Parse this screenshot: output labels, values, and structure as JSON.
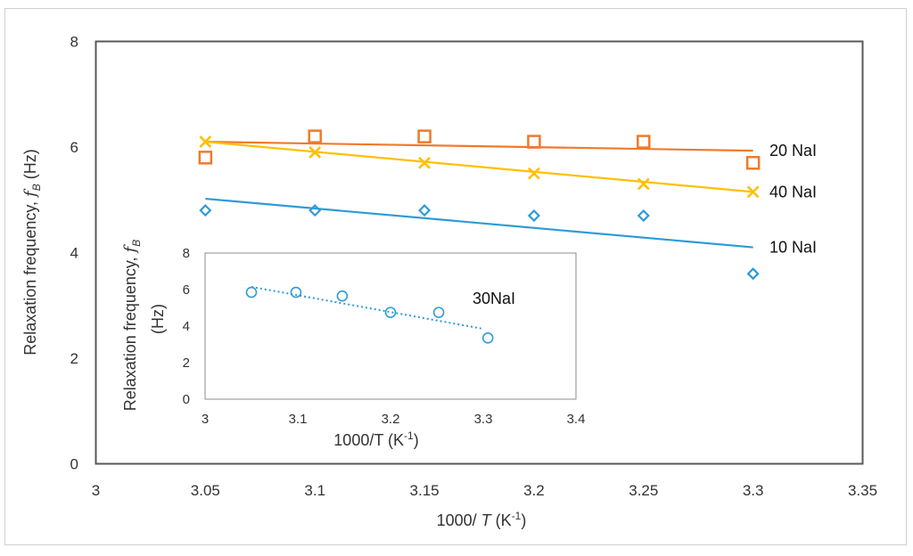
{
  "colors": {
    "frame": "#d0d0d0",
    "axis": "#595959",
    "inset_axis": "#8c8c8c",
    "series_10": "#2e9bd6",
    "series_20": "#f07a2a",
    "series_40": "#ffc000",
    "series_30": "#2e9bd6"
  },
  "chart_data": [
    {
      "type": "scatter",
      "role": "main",
      "xlabel_prefix": "1000/ ",
      "xlabel_var": "T",
      "xlabel_suffix": " (K",
      "xlabel_sup": "-1",
      "xlabel_close": ")",
      "ylabel_prefix": "Relaxation frequency, ",
      "ylabel_var": "f",
      "ylabel_sub": "B",
      "ylabel_suffix": " (Hz)",
      "xlim": [
        3.0,
        3.35
      ],
      "ylim": [
        0,
        8
      ],
      "xticks": [
        "3",
        "3.05",
        "3.1",
        "3.15",
        "3.2",
        "3.25",
        "3.3",
        "3.35"
      ],
      "yticks": [
        "0",
        "2",
        "4",
        "6",
        "8"
      ],
      "grid": false,
      "series": [
        {
          "name": "20 NaI",
          "marker": "square",
          "color": "#f07a2a",
          "x": [
            3.05,
            3.1,
            3.15,
            3.2,
            3.25,
            3.3
          ],
          "y": [
            5.8,
            6.2,
            6.2,
            6.1,
            6.1,
            5.7
          ],
          "trend": [
            [
              3.05,
              6.1
            ],
            [
              3.3,
              5.93
            ]
          ]
        },
        {
          "name": "40 NaI",
          "marker": "x",
          "color": "#ffc000",
          "x": [
            3.05,
            3.1,
            3.15,
            3.2,
            3.25,
            3.3
          ],
          "y": [
            6.1,
            5.9,
            5.7,
            5.5,
            5.3,
            5.15
          ],
          "trend": [
            [
              3.05,
              6.1
            ],
            [
              3.3,
              5.15
            ]
          ]
        },
        {
          "name": "10 NaI",
          "marker": "diamond",
          "color": "#2e9bd6",
          "x": [
            3.05,
            3.1,
            3.15,
            3.2,
            3.25,
            3.3
          ],
          "y": [
            4.8,
            4.8,
            4.8,
            4.7,
            4.7,
            3.6
          ],
          "trend": [
            [
              3.05,
              5.02
            ],
            [
              3.3,
              4.1
            ]
          ]
        }
      ]
    },
    {
      "type": "scatter",
      "role": "inset",
      "xlabel_prefix": "1000/T (K",
      "xlabel_sup": "-1",
      "xlabel_close": ")",
      "ylabel_line1_prefix": "Relaxation frequency, ",
      "ylabel_line1_var": "f",
      "ylabel_line1_sub": "B",
      "ylabel_line2": "(Hz)",
      "xlim": [
        3.0,
        3.4
      ],
      "ylim": [
        0,
        8
      ],
      "xticks": [
        "3",
        "3.1",
        "3.2",
        "3.3",
        "3.4"
      ],
      "yticks": [
        "0",
        "2",
        "4",
        "6",
        "8"
      ],
      "grid": false,
      "series": [
        {
          "name": "30NaI",
          "marker": "circle",
          "color": "#2e9bd6",
          "x": [
            3.05,
            3.098,
            3.148,
            3.2,
            3.252,
            3.305
          ],
          "y": [
            5.85,
            5.85,
            5.65,
            4.75,
            4.75,
            3.35
          ],
          "trend": [
            [
              3.05,
              6.15
            ],
            [
              3.3,
              3.85
            ]
          ]
        }
      ]
    }
  ]
}
